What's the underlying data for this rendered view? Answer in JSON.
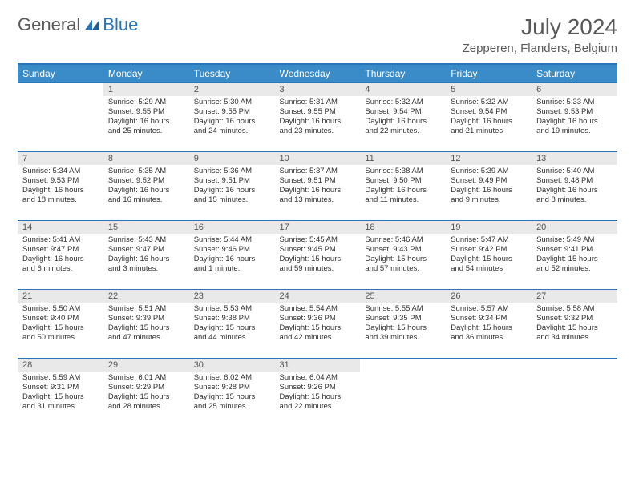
{
  "logo": {
    "main": "General",
    "sub": "Blue"
  },
  "title": "July 2024",
  "location": "Zepperen, Flanders, Belgium",
  "colors": {
    "header_bg": "#3a8cc9",
    "header_border": "#2876b8",
    "daynum_bg": "#e9e9e9",
    "text": "#333333",
    "title_text": "#5a5a5a",
    "logo_sub": "#2876b8"
  },
  "day_headers": [
    "Sunday",
    "Monday",
    "Tuesday",
    "Wednesday",
    "Thursday",
    "Friday",
    "Saturday"
  ],
  "weeks": [
    [
      {
        "n": "",
        "sr": "",
        "ss": "",
        "d1": "",
        "d2": ""
      },
      {
        "n": "1",
        "sr": "Sunrise: 5:29 AM",
        "ss": "Sunset: 9:55 PM",
        "d1": "Daylight: 16 hours",
        "d2": "and 25 minutes."
      },
      {
        "n": "2",
        "sr": "Sunrise: 5:30 AM",
        "ss": "Sunset: 9:55 PM",
        "d1": "Daylight: 16 hours",
        "d2": "and 24 minutes."
      },
      {
        "n": "3",
        "sr": "Sunrise: 5:31 AM",
        "ss": "Sunset: 9:55 PM",
        "d1": "Daylight: 16 hours",
        "d2": "and 23 minutes."
      },
      {
        "n": "4",
        "sr": "Sunrise: 5:32 AM",
        "ss": "Sunset: 9:54 PM",
        "d1": "Daylight: 16 hours",
        "d2": "and 22 minutes."
      },
      {
        "n": "5",
        "sr": "Sunrise: 5:32 AM",
        "ss": "Sunset: 9:54 PM",
        "d1": "Daylight: 16 hours",
        "d2": "and 21 minutes."
      },
      {
        "n": "6",
        "sr": "Sunrise: 5:33 AM",
        "ss": "Sunset: 9:53 PM",
        "d1": "Daylight: 16 hours",
        "d2": "and 19 minutes."
      }
    ],
    [
      {
        "n": "7",
        "sr": "Sunrise: 5:34 AM",
        "ss": "Sunset: 9:53 PM",
        "d1": "Daylight: 16 hours",
        "d2": "and 18 minutes."
      },
      {
        "n": "8",
        "sr": "Sunrise: 5:35 AM",
        "ss": "Sunset: 9:52 PM",
        "d1": "Daylight: 16 hours",
        "d2": "and 16 minutes."
      },
      {
        "n": "9",
        "sr": "Sunrise: 5:36 AM",
        "ss": "Sunset: 9:51 PM",
        "d1": "Daylight: 16 hours",
        "d2": "and 15 minutes."
      },
      {
        "n": "10",
        "sr": "Sunrise: 5:37 AM",
        "ss": "Sunset: 9:51 PM",
        "d1": "Daylight: 16 hours",
        "d2": "and 13 minutes."
      },
      {
        "n": "11",
        "sr": "Sunrise: 5:38 AM",
        "ss": "Sunset: 9:50 PM",
        "d1": "Daylight: 16 hours",
        "d2": "and 11 minutes."
      },
      {
        "n": "12",
        "sr": "Sunrise: 5:39 AM",
        "ss": "Sunset: 9:49 PM",
        "d1": "Daylight: 16 hours",
        "d2": "and 9 minutes."
      },
      {
        "n": "13",
        "sr": "Sunrise: 5:40 AM",
        "ss": "Sunset: 9:48 PM",
        "d1": "Daylight: 16 hours",
        "d2": "and 8 minutes."
      }
    ],
    [
      {
        "n": "14",
        "sr": "Sunrise: 5:41 AM",
        "ss": "Sunset: 9:47 PM",
        "d1": "Daylight: 16 hours",
        "d2": "and 6 minutes."
      },
      {
        "n": "15",
        "sr": "Sunrise: 5:43 AM",
        "ss": "Sunset: 9:47 PM",
        "d1": "Daylight: 16 hours",
        "d2": "and 3 minutes."
      },
      {
        "n": "16",
        "sr": "Sunrise: 5:44 AM",
        "ss": "Sunset: 9:46 PM",
        "d1": "Daylight: 16 hours",
        "d2": "and 1 minute."
      },
      {
        "n": "17",
        "sr": "Sunrise: 5:45 AM",
        "ss": "Sunset: 9:45 PM",
        "d1": "Daylight: 15 hours",
        "d2": "and 59 minutes."
      },
      {
        "n": "18",
        "sr": "Sunrise: 5:46 AM",
        "ss": "Sunset: 9:43 PM",
        "d1": "Daylight: 15 hours",
        "d2": "and 57 minutes."
      },
      {
        "n": "19",
        "sr": "Sunrise: 5:47 AM",
        "ss": "Sunset: 9:42 PM",
        "d1": "Daylight: 15 hours",
        "d2": "and 54 minutes."
      },
      {
        "n": "20",
        "sr": "Sunrise: 5:49 AM",
        "ss": "Sunset: 9:41 PM",
        "d1": "Daylight: 15 hours",
        "d2": "and 52 minutes."
      }
    ],
    [
      {
        "n": "21",
        "sr": "Sunrise: 5:50 AM",
        "ss": "Sunset: 9:40 PM",
        "d1": "Daylight: 15 hours",
        "d2": "and 50 minutes."
      },
      {
        "n": "22",
        "sr": "Sunrise: 5:51 AM",
        "ss": "Sunset: 9:39 PM",
        "d1": "Daylight: 15 hours",
        "d2": "and 47 minutes."
      },
      {
        "n": "23",
        "sr": "Sunrise: 5:53 AM",
        "ss": "Sunset: 9:38 PM",
        "d1": "Daylight: 15 hours",
        "d2": "and 44 minutes."
      },
      {
        "n": "24",
        "sr": "Sunrise: 5:54 AM",
        "ss": "Sunset: 9:36 PM",
        "d1": "Daylight: 15 hours",
        "d2": "and 42 minutes."
      },
      {
        "n": "25",
        "sr": "Sunrise: 5:55 AM",
        "ss": "Sunset: 9:35 PM",
        "d1": "Daylight: 15 hours",
        "d2": "and 39 minutes."
      },
      {
        "n": "26",
        "sr": "Sunrise: 5:57 AM",
        "ss": "Sunset: 9:34 PM",
        "d1": "Daylight: 15 hours",
        "d2": "and 36 minutes."
      },
      {
        "n": "27",
        "sr": "Sunrise: 5:58 AM",
        "ss": "Sunset: 9:32 PM",
        "d1": "Daylight: 15 hours",
        "d2": "and 34 minutes."
      }
    ],
    [
      {
        "n": "28",
        "sr": "Sunrise: 5:59 AM",
        "ss": "Sunset: 9:31 PM",
        "d1": "Daylight: 15 hours",
        "d2": "and 31 minutes."
      },
      {
        "n": "29",
        "sr": "Sunrise: 6:01 AM",
        "ss": "Sunset: 9:29 PM",
        "d1": "Daylight: 15 hours",
        "d2": "and 28 minutes."
      },
      {
        "n": "30",
        "sr": "Sunrise: 6:02 AM",
        "ss": "Sunset: 9:28 PM",
        "d1": "Daylight: 15 hours",
        "d2": "and 25 minutes."
      },
      {
        "n": "31",
        "sr": "Sunrise: 6:04 AM",
        "ss": "Sunset: 9:26 PM",
        "d1": "Daylight: 15 hours",
        "d2": "and 22 minutes."
      },
      {
        "n": "",
        "sr": "",
        "ss": "",
        "d1": "",
        "d2": ""
      },
      {
        "n": "",
        "sr": "",
        "ss": "",
        "d1": "",
        "d2": ""
      },
      {
        "n": "",
        "sr": "",
        "ss": "",
        "d1": "",
        "d2": ""
      }
    ]
  ]
}
